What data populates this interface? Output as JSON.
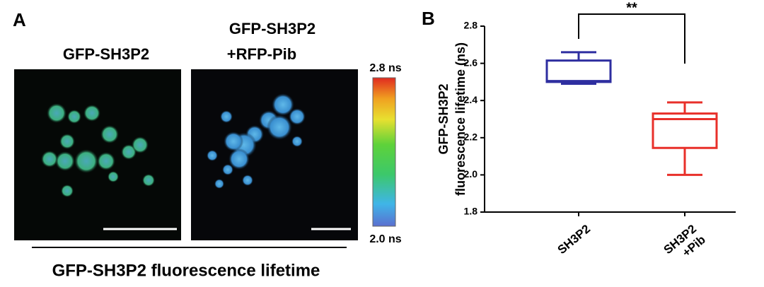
{
  "panel_a": {
    "label": "A",
    "image_1_title": "GFP-SH3P2",
    "image_2_title": [
      "GFP-SH3P2",
      "+RFP-Pib"
    ],
    "colorbar_max": "2.8 ns",
    "colorbar_min": "2.0 ns",
    "caption": "GFP-SH3P2 fluorescence lifetime"
  },
  "panel_b": {
    "label": "B"
  },
  "chart_data": {
    "type": "box",
    "ylabel": [
      "GFP-SH3P2",
      "fluorescence lifetime (ns)"
    ],
    "categories": [
      "SH3P2",
      "SH3P2\n+Pib"
    ],
    "boxes": [
      {
        "min": 2.49,
        "q1": 2.5,
        "median": 2.505,
        "q3": 2.615,
        "max": 2.66,
        "color": "#2e2ea0"
      },
      {
        "min": 2.0,
        "q1": 2.145,
        "median": 2.3,
        "q3": 2.33,
        "max": 2.39,
        "color": "#e8302a"
      }
    ],
    "ylim": [
      1.8,
      2.8
    ],
    "yticks": [
      1.8,
      {
        "value": 2,
        "label": "2.0"
      },
      2.2,
      2.4,
      2.6,
      2.8
    ],
    "annotation": "**"
  }
}
